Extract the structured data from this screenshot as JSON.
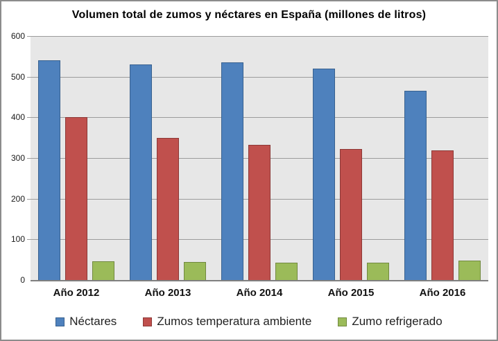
{
  "title": "Volumen total de zumos y néctares en España (millones de litros)",
  "chart_data": {
    "type": "bar",
    "title": "Volumen total de zumos y néctares en España (millones de litros)",
    "categories": [
      "Año 2012",
      "Año 2013",
      "Año 2014",
      "Año 2015",
      "Año 2016"
    ],
    "series": [
      {
        "name": "Néctares",
        "color": "#4e81bd",
        "border_color": "#38618f",
        "values": [
          540,
          530,
          535,
          520,
          465
        ]
      },
      {
        "name": "Zumos temperatura ambiente",
        "color": "#c0504d",
        "border_color": "#8c3836",
        "values": [
          400,
          350,
          333,
          322,
          318
        ]
      },
      {
        "name": "Zumo refrigerado",
        "color": "#9bbb59",
        "border_color": "#71893f",
        "values": [
          46,
          44,
          43,
          43,
          48
        ]
      }
    ],
    "xlabel": "",
    "ylabel": "",
    "ylim": [
      0,
      600
    ],
    "ytick_step": 100,
    "yticks": [
      "600",
      "500",
      "400",
      "300",
      "200",
      "100",
      "0"
    ],
    "grid": true,
    "legend_position": "bottom",
    "plot_background": "#e7e7e7",
    "gridline_color": "#9c9c9c"
  }
}
